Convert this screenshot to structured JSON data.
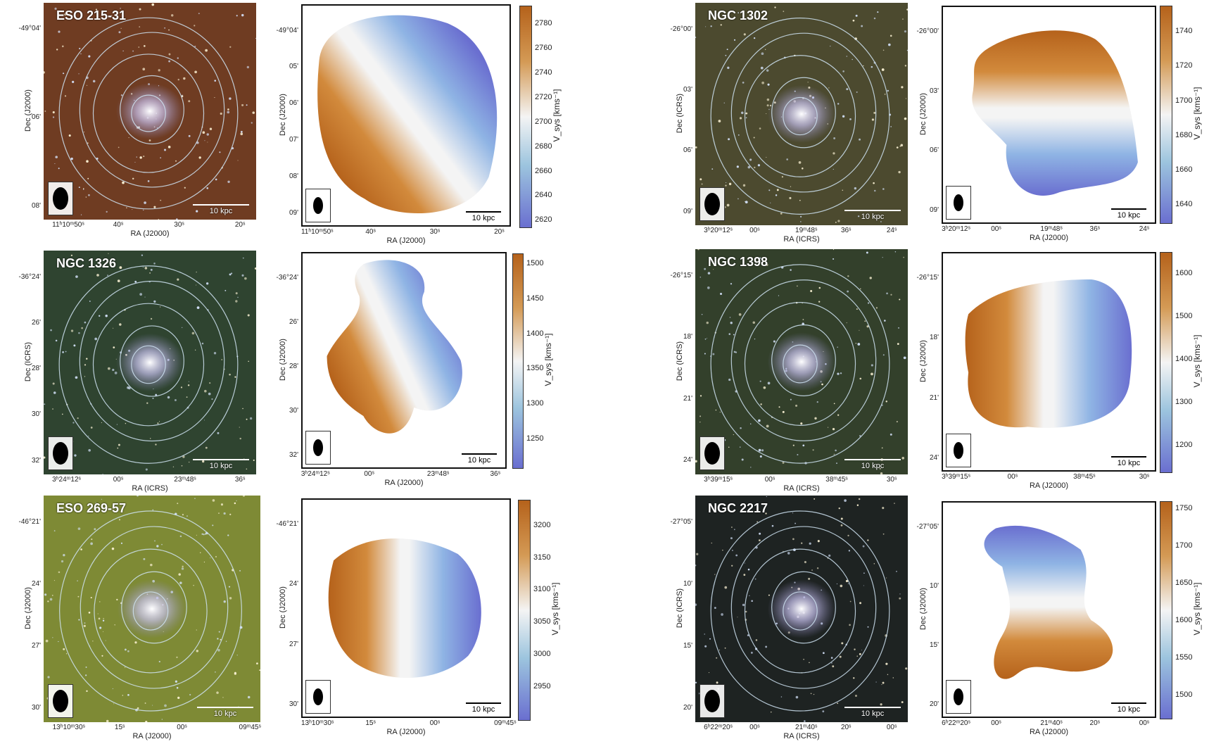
{
  "colors": {
    "velocity_low": "#6a6fd0",
    "velocity_mid": "#f4f4f4",
    "velocity_high": "#b5621b",
    "contour": "#cfe3f2",
    "frame": "#111111"
  },
  "galaxies": [
    {
      "name": "ESO 215-31",
      "optical_bg": "#6f3c22",
      "optical_ra_label": "RA (J2000)",
      "optical_dec_label": "Dec (J2000)",
      "optical_ra_ticks": [
        "11ʰ10ᵐ50ˢ",
        "40ˢ",
        "30ˢ",
        "20ˢ"
      ],
      "optical_dec_ticks": [
        "-49°04'",
        "06'",
        "08'"
      ],
      "map_ra_label": "RA (J2000)",
      "map_dec_label": "Dec (J2000)",
      "map_ra_ticks": [
        "11ʰ10ᵐ50ˢ",
        "40ˢ",
        "30ˢ",
        "20ˢ"
      ],
      "map_dec_ticks": [
        "-49°04'",
        "05'",
        "06'",
        "07'",
        "08'",
        "09'"
      ],
      "scale_label": "10 kpc",
      "colorbar_label": "V_sys [kms⁻¹]",
      "colorbar_ticks": [
        "2780",
        "2760",
        "2740",
        "2720",
        "2700",
        "2680",
        "2660",
        "2640",
        "2620"
      ],
      "velocity_range": [
        2615,
        2795
      ]
    },
    {
      "name": "NGC 1302",
      "optical_bg": "#4c4a2f",
      "optical_ra_label": "RA (ICRS)",
      "optical_dec_label": "Dec (ICRS)",
      "optical_ra_ticks": [
        "3ʰ20ᵐ12ˢ",
        "00ˢ",
        "19ᵐ48ˢ",
        "36ˢ",
        "24ˢ"
      ],
      "optical_dec_ticks": [
        "-26°00'",
        "03'",
        "06'",
        "09'"
      ],
      "map_ra_label": "RA (J2000)",
      "map_dec_label": "Dec (J2000)",
      "map_ra_ticks": [
        "3ʰ20ᵐ12ˢ",
        "00ˢ",
        "19ᵐ48ˢ",
        "36ˢ",
        "24ˢ"
      ],
      "map_dec_ticks": [
        "-26°00'",
        "03'",
        "06'",
        "09'"
      ],
      "scale_label": "10 kpc",
      "colorbar_label": "V_sys [kms⁻¹]",
      "colorbar_ticks": [
        "1740",
        "1720",
        "1700",
        "1680",
        "1660",
        "1640"
      ],
      "velocity_range": [
        1630,
        1755
      ]
    },
    {
      "name": "NGC 1326",
      "optical_bg": "#2f4430",
      "optical_ra_label": "RA (ICRS)",
      "optical_dec_label": "Dec (ICRS)",
      "optical_ra_ticks": [
        "3ʰ24ᵐ12ˢ",
        "00ˢ",
        "23ᵐ48ˢ",
        "36ˢ"
      ],
      "optical_dec_ticks": [
        "-36°24'",
        "26'",
        "28'",
        "30'",
        "32'"
      ],
      "map_ra_label": "RA (J2000)",
      "map_dec_label": "Dec (J2000)",
      "map_ra_ticks": [
        "3ʰ24ᵐ12ˢ",
        "00ˢ",
        "23ᵐ48ˢ",
        "36ˢ"
      ],
      "map_dec_ticks": [
        "-36°24'",
        "26'",
        "28'",
        "30'",
        "32'"
      ],
      "scale_label": "10 kpc",
      "colorbar_label": "V_sys [kms⁻¹]",
      "colorbar_ticks": [
        "1500",
        "1450",
        "1400",
        "1350",
        "1300",
        "1250"
      ],
      "velocity_range": [
        1210,
        1515
      ]
    },
    {
      "name": "NGC 1398",
      "optical_bg": "#33402b",
      "optical_ra_label": "RA (ICRS)",
      "optical_dec_label": "Dec (ICRS)",
      "optical_ra_ticks": [
        "3ʰ39ᵐ15ˢ",
        "00ˢ",
        "38ᵐ45ˢ",
        "30ˢ"
      ],
      "optical_dec_ticks": [
        "-26°15'",
        "18'",
        "21'",
        "24'"
      ],
      "map_ra_label": "RA (J2000)",
      "map_dec_label": "Dec (J2000)",
      "map_ra_ticks": [
        "3ʰ39ᵐ15ˢ",
        "00ˢ",
        "38ᵐ45ˢ",
        "30ˢ"
      ],
      "map_dec_ticks": [
        "-26°15'",
        "18'",
        "21'",
        "24'"
      ],
      "scale_label": "10 kpc",
      "colorbar_label": "V_sys [kms⁻¹]",
      "colorbar_ticks": [
        "1600",
        "1500",
        "1400",
        "1300",
        "1200"
      ],
      "velocity_range": [
        1140,
        1650
      ]
    },
    {
      "name": "ESO 269-57",
      "optical_bg": "#7e8a35",
      "optical_ra_label": "RA (J2000)",
      "optical_dec_label": "Dec (J2000)",
      "optical_ra_ticks": [
        "13ʰ10ᵐ30ˢ",
        "15ˢ",
        "00ˢ",
        "09ᵐ45ˢ"
      ],
      "optical_dec_ticks": [
        "-46°21'",
        "24'",
        "27'",
        "30'"
      ],
      "map_ra_label": "RA (J2000)",
      "map_dec_label": "Dec (J2000)",
      "map_ra_ticks": [
        "13ʰ10ᵐ30ˢ",
        "15ˢ",
        "00ˢ",
        "09ᵐ45ˢ"
      ],
      "map_dec_ticks": [
        "-46°21'",
        "24'",
        "27'",
        "30'"
      ],
      "scale_label": "10 kpc",
      "colorbar_label": "V_sys [kms⁻¹]",
      "colorbar_ticks": [
        "3200",
        "3150",
        "3100",
        "3050",
        "3000",
        "2950"
      ],
      "velocity_range": [
        2900,
        3240
      ]
    },
    {
      "name": "NGC 2217",
      "optical_bg": "#1e2322",
      "optical_ra_label": "RA (ICRS)",
      "optical_dec_label": "Dec (ICRS)",
      "optical_ra_ticks": [
        "6ʰ22ᵐ20ˢ",
        "00ˢ",
        "21ᵐ40ˢ",
        "20ˢ",
        "00ˢ"
      ],
      "optical_dec_ticks": [
        "-27°05'",
        "10'",
        "15'",
        "20'"
      ],
      "map_ra_label": "RA (J2000)",
      "map_dec_label": "Dec (J2000)",
      "map_ra_ticks": [
        "6ʰ22ᵐ20ˢ",
        "00ˢ",
        "21ᵐ40ˢ",
        "20ˢ",
        "00ˢ"
      ],
      "map_dec_ticks": [
        "-27°05'",
        "10'",
        "15'",
        "20'"
      ],
      "scale_label": "10 kpc",
      "colorbar_label": "V_sys [kms⁻¹]",
      "colorbar_ticks": [
        "1750",
        "1700",
        "1650",
        "1600",
        "1550",
        "1500"
      ],
      "velocity_range": [
        1470,
        1760
      ]
    }
  ]
}
